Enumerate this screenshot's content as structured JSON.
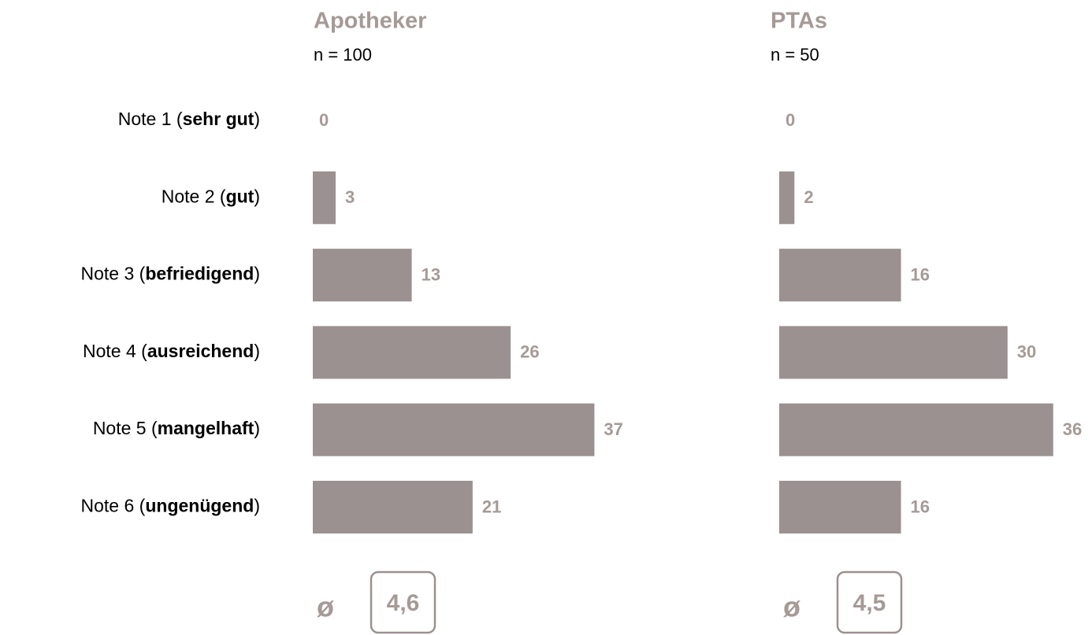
{
  "row_labels": [
    {
      "prefix": "Note 1 (",
      "bold": "sehr gut",
      "suffix": ")"
    },
    {
      "prefix": "Note 2 (",
      "bold": "gut",
      "suffix": ")"
    },
    {
      "prefix": "Note 3 (",
      "bold": "befriedigend",
      "suffix": ")"
    },
    {
      "prefix": "Note 4 (",
      "bold": "ausreichend",
      "suffix": ")"
    },
    {
      "prefix": "Note 5 (",
      "bold": "mangelhaft",
      "suffix": ")"
    },
    {
      "prefix": "Note 6 (",
      "bold": "ungenügend",
      "suffix": ")"
    }
  ],
  "chart_data": [
    {
      "type": "hbar",
      "title": "Apotheker",
      "subtitle": "n = 100",
      "color": "#9b9190",
      "values": [
        0,
        3,
        13,
        26,
        37,
        21
      ],
      "mean_symbol": "ø",
      "mean": {
        "value": 4.6,
        "label": "4,6"
      }
    },
    {
      "type": "hbar",
      "title": "PTAs",
      "subtitle": "n = 50",
      "color": "#9b9190",
      "values": [
        0,
        2,
        16,
        30,
        36,
        16
      ],
      "mean_symbol": "ø",
      "mean": {
        "value": 4.5,
        "label": "4,5"
      }
    }
  ]
}
